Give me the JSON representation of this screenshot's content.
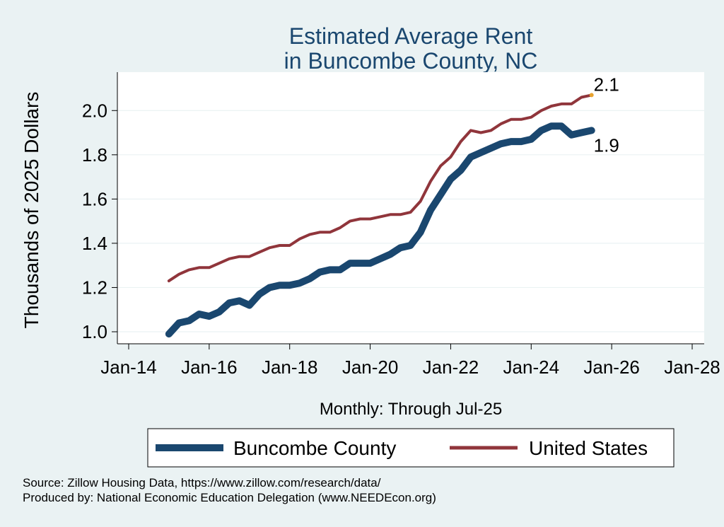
{
  "chart_data": {
    "type": "line",
    "title": [
      "Estimated Average Rent",
      "in Buncombe County, NC"
    ],
    "xlabel": "Monthly: Through Jul-25",
    "ylabel": "Thousands of 2025 Dollars",
    "xlim": [
      2014.0,
      2028.0
    ],
    "ylim": [
      1.0,
      2.1
    ],
    "yticks": [
      1.0,
      1.2,
      1.4,
      1.6,
      1.8,
      2.0
    ],
    "yticklabels": [
      "1.0",
      "1.2",
      "1.4",
      "1.6",
      "1.8",
      "2.0"
    ],
    "xticks": [
      2014,
      2016,
      2018,
      2020,
      2022,
      2024,
      2026,
      2028
    ],
    "xticklabels": [
      "Jan-14",
      "Jan-16",
      "Jan-18",
      "Jan-20",
      "Jan-22",
      "Jan-24",
      "Jan-26",
      "Jan-28"
    ],
    "grid": true,
    "legend_position": "bottom",
    "series": [
      {
        "name": "Buncombe County",
        "color": "#1a476f",
        "end_label": "1.9",
        "x": [
          2015.0,
          2015.25,
          2015.5,
          2015.75,
          2016.0,
          2016.25,
          2016.5,
          2016.75,
          2017.0,
          2017.25,
          2017.5,
          2017.75,
          2018.0,
          2018.25,
          2018.5,
          2018.75,
          2019.0,
          2019.25,
          2019.5,
          2019.75,
          2020.0,
          2020.25,
          2020.5,
          2020.75,
          2021.0,
          2021.25,
          2021.5,
          2021.75,
          2022.0,
          2022.25,
          2022.5,
          2022.75,
          2023.0,
          2023.25,
          2023.5,
          2023.75,
          2024.0,
          2024.25,
          2024.5,
          2024.75,
          2025.0,
          2025.25,
          2025.5
        ],
        "y": [
          0.99,
          1.04,
          1.05,
          1.08,
          1.07,
          1.09,
          1.13,
          1.14,
          1.12,
          1.17,
          1.2,
          1.21,
          1.21,
          1.22,
          1.24,
          1.27,
          1.28,
          1.28,
          1.31,
          1.31,
          1.31,
          1.33,
          1.35,
          1.38,
          1.39,
          1.45,
          1.55,
          1.62,
          1.69,
          1.73,
          1.79,
          1.81,
          1.83,
          1.85,
          1.86,
          1.86,
          1.87,
          1.91,
          1.93,
          1.93,
          1.89,
          1.9,
          1.91
        ]
      },
      {
        "name": "United States",
        "color": "#90353b",
        "end_label": "2.1",
        "x": [
          2015.0,
          2015.25,
          2015.5,
          2015.75,
          2016.0,
          2016.25,
          2016.5,
          2016.75,
          2017.0,
          2017.25,
          2017.5,
          2017.75,
          2018.0,
          2018.25,
          2018.5,
          2018.75,
          2019.0,
          2019.25,
          2019.5,
          2019.75,
          2020.0,
          2020.25,
          2020.5,
          2020.75,
          2021.0,
          2021.25,
          2021.5,
          2021.75,
          2022.0,
          2022.25,
          2022.5,
          2022.75,
          2023.0,
          2023.25,
          2023.5,
          2023.75,
          2024.0,
          2024.25,
          2024.5,
          2024.75,
          2025.0,
          2025.25,
          2025.5
        ],
        "y": [
          1.23,
          1.26,
          1.28,
          1.29,
          1.29,
          1.31,
          1.33,
          1.34,
          1.34,
          1.36,
          1.38,
          1.39,
          1.39,
          1.42,
          1.44,
          1.45,
          1.45,
          1.47,
          1.5,
          1.51,
          1.51,
          1.52,
          1.53,
          1.53,
          1.54,
          1.59,
          1.68,
          1.75,
          1.79,
          1.86,
          1.91,
          1.9,
          1.91,
          1.94,
          1.96,
          1.96,
          1.97,
          2.0,
          2.02,
          2.03,
          2.03,
          2.06,
          2.07
        ]
      }
    ]
  },
  "footer": {
    "source": "Source: Zillow Housing Data, https://www.zillow.com/research/data/",
    "produced_by": "Produced by: National Economic Education Delegation (www.NEEDEcon.org)"
  }
}
